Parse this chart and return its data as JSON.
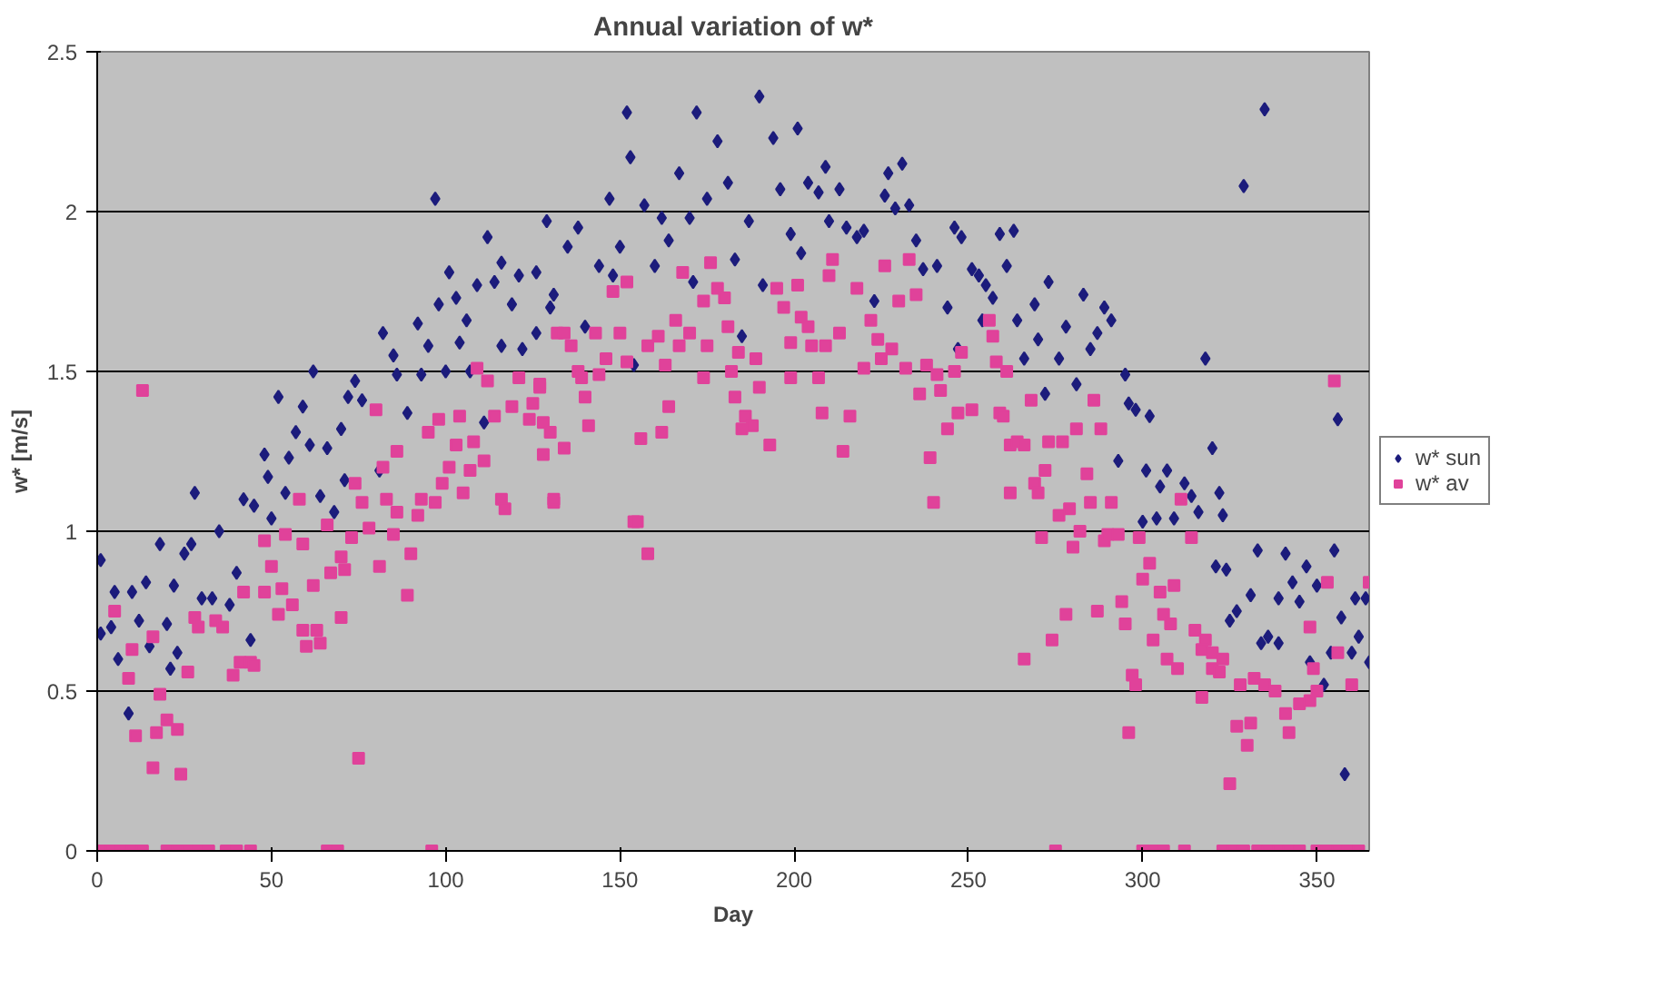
{
  "chart_data": {
    "type": "scatter",
    "title": "Annual variation of w*",
    "xlabel": "Day",
    "ylabel": "w* [m/s]",
    "xlim": [
      0,
      365
    ],
    "xticks": [
      0,
      50,
      100,
      150,
      200,
      250,
      300,
      350
    ],
    "ylim": [
      0,
      2.5
    ],
    "yticks": [
      0,
      0.5,
      1,
      1.5,
      2,
      2.5
    ],
    "grid": "y",
    "legend": "right",
    "series": [
      {
        "name": "w* sun",
        "color": "#1c1c7c",
        "marker": "diamond",
        "x": [
          1,
          1,
          4,
          5,
          6,
          9,
          10,
          12,
          14,
          15,
          18,
          20,
          21,
          22,
          23,
          25,
          27,
          28,
          30,
          33,
          35,
          38,
          40,
          42,
          44,
          45,
          48,
          49,
          50,
          52,
          54,
          55,
          57,
          59,
          61,
          62,
          64,
          66,
          68,
          70,
          71,
          72,
          74,
          76,
          81,
          82,
          85,
          86,
          89,
          92,
          93,
          95,
          97,
          98,
          100,
          101,
          103,
          104,
          106,
          107,
          109,
          111,
          112,
          114,
          116,
          116,
          119,
          121,
          122,
          126,
          126,
          129,
          130,
          131,
          135,
          138,
          140,
          144,
          147,
          148,
          150,
          152,
          153,
          154,
          157,
          160,
          162,
          164,
          167,
          170,
          171,
          172,
          175,
          178,
          181,
          183,
          185,
          187,
          190,
          191,
          194,
          196,
          199,
          201,
          202,
          204,
          207,
          209,
          210,
          213,
          215,
          218,
          220,
          223,
          226,
          227,
          229,
          231,
          233,
          235,
          237,
          241,
          244,
          246,
          247,
          248,
          251,
          253,
          255,
          254,
          257,
          259,
          261,
          263,
          264,
          266,
          269,
          270,
          272,
          273,
          276,
          278,
          281,
          283,
          285,
          287,
          289,
          291,
          293,
          295,
          296,
          298,
          300,
          301,
          302,
          304,
          305,
          307,
          309,
          312,
          314,
          316,
          318,
          320,
          322,
          323,
          321,
          324,
          325,
          327,
          329,
          331,
          334,
          335,
          336,
          333,
          339,
          339,
          341,
          343,
          345,
          347,
          348,
          350,
          352,
          354,
          355,
          356,
          357,
          358,
          360,
          361,
          362,
          364,
          365
        ],
        "values": [
          0.91,
          0.68,
          0.7,
          0.81,
          0.6,
          0.43,
          0.81,
          0.72,
          0.84,
          0.64,
          0.96,
          0.71,
          0.57,
          0.83,
          0.62,
          0.93,
          0.96,
          1.12,
          0.79,
          0.79,
          1.0,
          0.77,
          0.87,
          1.1,
          0.66,
          1.08,
          1.24,
          1.17,
          1.04,
          1.42,
          1.12,
          1.23,
          1.31,
          1.39,
          1.27,
          1.5,
          1.11,
          1.26,
          1.06,
          1.32,
          1.16,
          1.42,
          1.47,
          1.41,
          1.19,
          1.62,
          1.55,
          1.49,
          1.37,
          1.65,
          1.49,
          1.58,
          2.04,
          1.71,
          1.5,
          1.81,
          1.73,
          1.59,
          1.66,
          1.5,
          1.77,
          1.34,
          1.92,
          1.78,
          1.84,
          1.58,
          1.71,
          1.8,
          1.57,
          1.81,
          1.62,
          1.97,
          1.7,
          1.74,
          1.89,
          1.95,
          1.64,
          1.83,
          2.04,
          1.8,
          1.89,
          2.31,
          2.17,
          1.52,
          2.02,
          1.83,
          1.98,
          1.91,
          2.12,
          1.98,
          1.78,
          2.31,
          2.04,
          2.22,
          2.09,
          1.85,
          1.61,
          1.97,
          2.36,
          1.77,
          2.23,
          2.07,
          1.93,
          2.26,
          1.87,
          2.09,
          2.06,
          2.14,
          1.97,
          2.07,
          1.95,
          1.92,
          1.94,
          1.72,
          2.05,
          2.12,
          2.01,
          2.15,
          2.02,
          1.91,
          1.82,
          1.83,
          1.7,
          1.95,
          1.57,
          1.92,
          1.82,
          1.8,
          1.77,
          1.66,
          1.73,
          1.93,
          1.83,
          1.94,
          1.66,
          1.54,
          1.71,
          1.6,
          1.43,
          1.78,
          1.54,
          1.64,
          1.46,
          1.74,
          1.57,
          1.62,
          1.7,
          1.66,
          1.22,
          1.49,
          1.4,
          1.38,
          1.03,
          1.19,
          1.36,
          1.04,
          1.14,
          1.19,
          1.04,
          1.15,
          1.11,
          1.06,
          1.54,
          1.26,
          1.12,
          1.05,
          0.89,
          0.88,
          0.72,
          0.75,
          2.08,
          0.8,
          0.65,
          2.32,
          0.67,
          0.94,
          0.65,
          0.79,
          0.93,
          0.84,
          0.78,
          0.89,
          0.59,
          0.83,
          0.52,
          0.62,
          0.94,
          1.35,
          0.73,
          0.24,
          0.62,
          0.79,
          0.67,
          0.79,
          0.59
        ]
      },
      {
        "name": "w* av",
        "color": "#e0429a",
        "marker": "square",
        "x": [
          5,
          10,
          9,
          11,
          13,
          16,
          16,
          17,
          18,
          20,
          23,
          24,
          26,
          28,
          29,
          34,
          36,
          39,
          41,
          42,
          44,
          45,
          48,
          48,
          50,
          52,
          53,
          54,
          56,
          58,
          59,
          59,
          60,
          62,
          63,
          64,
          66,
          67,
          70,
          70,
          71,
          73,
          74,
          75,
          76,
          78,
          80,
          81,
          82,
          83,
          85,
          86,
          86,
          89,
          90,
          92,
          93,
          95,
          97,
          98,
          99,
          101,
          103,
          104,
          105,
          107,
          108,
          109,
          111,
          112,
          114,
          116,
          117,
          119,
          121,
          124,
          127,
          128,
          131,
          132,
          125,
          127,
          128,
          130,
          131,
          134,
          134,
          136,
          138,
          139,
          140,
          141,
          143,
          144,
          146,
          148,
          150,
          152,
          152,
          154,
          155,
          156,
          158,
          158,
          161,
          162,
          163,
          164,
          166,
          167,
          168,
          170,
          174,
          174,
          175,
          176,
          178,
          180,
          181,
          182,
          183,
          184,
          185,
          186,
          188,
          189,
          190,
          193,
          195,
          197,
          199,
          199,
          201,
          202,
          204,
          205,
          207,
          208,
          209,
          210,
          211,
          213,
          214,
          216,
          218,
          220,
          222,
          224,
          225,
          226,
          228,
          230,
          232,
          233,
          235,
          236,
          238,
          239,
          240,
          241,
          242,
          244,
          246,
          247,
          248,
          251,
          256,
          257,
          258,
          259,
          260,
          261,
          262,
          262,
          264,
          266,
          266,
          268,
          269,
          270,
          271,
          272,
          273,
          274,
          276,
          277,
          278,
          279,
          280,
          281,
          282,
          284,
          285,
          286,
          287,
          288,
          289,
          290,
          291,
          293,
          294,
          295,
          296,
          297,
          298,
          299,
          300,
          302,
          303,
          305,
          306,
          307,
          308,
          309,
          310,
          311,
          314,
          315,
          317,
          318,
          317,
          320,
          320,
          322,
          323,
          325,
          327,
          328,
          330,
          331,
          332,
          335,
          338,
          341,
          342,
          345,
          348,
          348,
          349,
          350,
          353,
          355,
          356,
          360,
          365,
          1,
          4,
          7,
          10,
          13,
          20,
          23,
          26,
          29,
          32,
          37,
          40,
          44,
          66,
          69,
          96,
          275,
          300,
          303,
          306,
          312,
          323,
          326,
          329,
          333,
          336,
          339,
          342,
          345,
          350,
          353,
          356,
          359,
          362
        ],
        "values": [
          0.75,
          0.63,
          0.54,
          0.36,
          1.44,
          0.26,
          0.67,
          0.37,
          0.49,
          0.41,
          0.38,
          0.24,
          0.56,
          0.73,
          0.7,
          0.72,
          0.7,
          0.55,
          0.59,
          0.81,
          0.59,
          0.58,
          0.97,
          0.81,
          0.89,
          0.74,
          0.82,
          0.99,
          0.77,
          1.1,
          0.96,
          0.69,
          0.64,
          0.83,
          0.69,
          0.65,
          1.02,
          0.87,
          0.92,
          0.73,
          0.88,
          0.98,
          1.15,
          0.29,
          1.09,
          1.01,
          1.38,
          0.89,
          1.2,
          1.1,
          0.99,
          1.25,
          1.06,
          0.8,
          0.93,
          1.05,
          1.1,
          1.31,
          1.09,
          1.35,
          1.15,
          1.2,
          1.27,
          1.36,
          1.12,
          1.19,
          1.28,
          1.51,
          1.22,
          1.47,
          1.36,
          1.1,
          1.07,
          1.39,
          1.48,
          1.35,
          1.45,
          1.24,
          1.09,
          1.62,
          1.4,
          1.46,
          1.34,
          1.31,
          1.1,
          1.26,
          1.62,
          1.58,
          1.5,
          1.48,
          1.42,
          1.33,
          1.62,
          1.49,
          1.54,
          1.75,
          1.62,
          1.53,
          1.78,
          1.03,
          1.03,
          1.29,
          0.93,
          1.58,
          1.61,
          1.31,
          1.52,
          1.39,
          1.66,
          1.58,
          1.81,
          1.62,
          1.72,
          1.48,
          1.58,
          1.84,
          1.76,
          1.73,
          1.64,
          1.5,
          1.42,
          1.56,
          1.32,
          1.36,
          1.33,
          1.54,
          1.45,
          1.27,
          1.76,
          1.7,
          1.48,
          1.59,
          1.77,
          1.67,
          1.64,
          1.58,
          1.48,
          1.37,
          1.58,
          1.8,
          1.85,
          1.62,
          1.25,
          1.36,
          1.76,
          1.51,
          1.66,
          1.6,
          1.54,
          1.83,
          1.57,
          1.72,
          1.51,
          1.85,
          1.74,
          1.43,
          1.52,
          1.23,
          1.09,
          1.49,
          1.44,
          1.32,
          1.5,
          1.37,
          1.56,
          1.38,
          1.66,
          1.61,
          1.53,
          1.37,
          1.36,
          1.5,
          1.27,
          1.12,
          1.28,
          1.27,
          0.6,
          1.41,
          1.15,
          1.12,
          0.98,
          1.19,
          1.28,
          0.66,
          1.05,
          1.28,
          0.74,
          1.07,
          0.95,
          1.32,
          1.0,
          1.18,
          1.09,
          1.41,
          0.75,
          1.32,
          0.97,
          0.99,
          1.09,
          0.99,
          0.78,
          0.71,
          0.37,
          0.55,
          0.52,
          0.98,
          0.85,
          0.9,
          0.66,
          0.81,
          0.74,
          0.6,
          0.71,
          0.83,
          0.57,
          1.1,
          0.98,
          0.69,
          0.48,
          0.66,
          0.63,
          0.62,
          0.57,
          0.56,
          0.6,
          0.21,
          0.39,
          0.52,
          0.33,
          0.4,
          0.54,
          0.52,
          0.5,
          0.43,
          0.37,
          0.46,
          0.47,
          0.7,
          0.57,
          0.5,
          0.84,
          1.47,
          0.62,
          0.52,
          0.84,
          0,
          0,
          0,
          0,
          0,
          0,
          0,
          0,
          0,
          0,
          0,
          0,
          0,
          0,
          0,
          0,
          0,
          0,
          0,
          0,
          0,
          0,
          0,
          0,
          0,
          0,
          0,
          0,
          0,
          0,
          0,
          0,
          0,
          0
        ]
      }
    ]
  }
}
